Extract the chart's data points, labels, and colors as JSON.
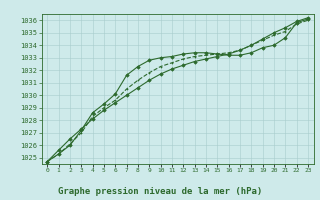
{
  "series1": [
    1024.7,
    1025.3,
    1026.0,
    1027.2,
    1028.6,
    1029.3,
    1030.1,
    1031.6,
    1032.3,
    1032.8,
    1033.0,
    1033.1,
    1033.3,
    1033.4,
    1033.4,
    1033.3,
    1033.2,
    1033.2,
    1033.4,
    1033.8,
    1034.0,
    1034.6,
    1035.8,
    1036.1
  ],
  "series2": [
    1024.7,
    1025.3,
    1026.1,
    1027.0,
    1028.3,
    1029.0,
    1029.6,
    1030.5,
    1031.2,
    1031.8,
    1032.3,
    1032.6,
    1032.9,
    1033.1,
    1033.2,
    1033.3,
    1033.4,
    1033.6,
    1034.0,
    1034.4,
    1034.8,
    1035.1,
    1035.7,
    1036.0
  ],
  "series3": [
    1024.7,
    1025.6,
    1026.5,
    1027.3,
    1028.1,
    1028.8,
    1029.4,
    1030.0,
    1030.6,
    1031.2,
    1031.7,
    1032.1,
    1032.4,
    1032.7,
    1032.9,
    1033.1,
    1033.3,
    1033.6,
    1034.0,
    1034.5,
    1035.0,
    1035.4,
    1035.9,
    1036.2
  ],
  "x": [
    0,
    1,
    2,
    3,
    4,
    5,
    6,
    7,
    8,
    9,
    10,
    11,
    12,
    13,
    14,
    15,
    16,
    17,
    18,
    19,
    20,
    21,
    22,
    23
  ],
  "xlabels": [
    "0",
    "1",
    "2",
    "3",
    "4",
    "5",
    "6",
    "7",
    "8",
    "9",
    "10",
    "11",
    "12",
    "13",
    "14",
    "15",
    "16",
    "17",
    "18",
    "19",
    "20",
    "21",
    "22",
    "23"
  ],
  "ylim": [
    1024.5,
    1036.5
  ],
  "yticks": [
    1025,
    1026,
    1027,
    1028,
    1029,
    1030,
    1031,
    1032,
    1033,
    1034,
    1035,
    1036
  ],
  "line_color": "#2d6a2d",
  "bg_color": "#ceeaea",
  "grid_color": "#a8cccc",
  "xlabel": "Graphe pression niveau de la mer (hPa)",
  "marker_size": 1.8,
  "linewidth": 0.8,
  "fig_width": 3.2,
  "fig_height": 2.0,
  "dpi": 100
}
